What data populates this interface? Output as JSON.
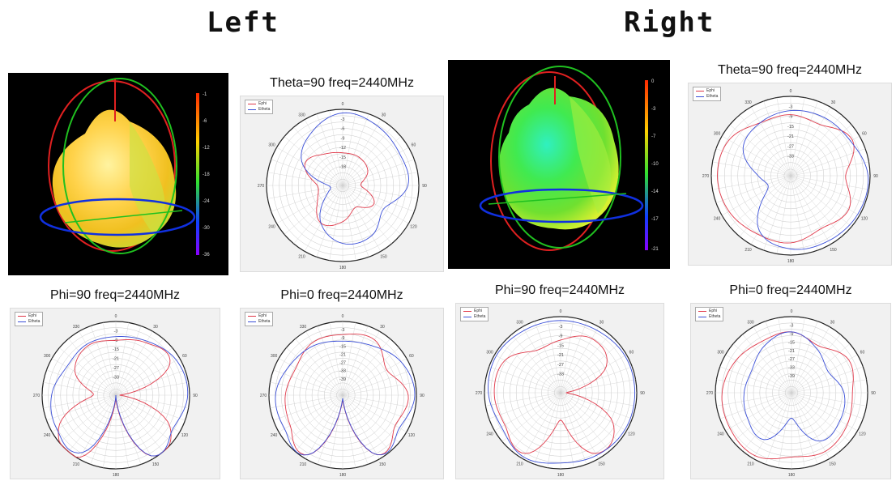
{
  "headings": {
    "left": "Left",
    "right": "Right"
  },
  "legend": {
    "ephi": "Ephi",
    "etheta": "Etheta"
  },
  "colors": {
    "ephi": "#e0394a",
    "etheta": "#3a4fd8"
  },
  "colorbar_left": {
    "ticks": [
      "-1",
      "-6",
      "-12",
      "-18",
      "-24",
      "-30",
      "-36"
    ]
  },
  "colorbar_right": {
    "ticks": [
      "0",
      "-3",
      "-7",
      "-10",
      "-14",
      "-17",
      "-21"
    ]
  },
  "chart_data": [
    {
      "type": "line",
      "id": "left-theta90",
      "title": "Theta=90 freq=2440MHz",
      "radial_labels": [
        "-3",
        "-6",
        "-9",
        "-12",
        "-15",
        "-18"
      ],
      "angle_labels": [
        "0",
        "30",
        "60",
        "90",
        "120",
        "150",
        "180",
        "210",
        "240",
        "270",
        "300",
        "330"
      ],
      "rlim": [
        -21,
        0
      ],
      "grid": true,
      "legend": "top-left",
      "angles": [
        0,
        30,
        60,
        90,
        120,
        150,
        180,
        210,
        240,
        270,
        300,
        330
      ],
      "series": [
        {
          "name": "Ephi",
          "values": [
            -12,
            -12,
            -13,
            -16,
            -11,
            -14,
            -11,
            -9,
            -13,
            -14,
            -9,
            -11
          ]
        },
        {
          "name": "Etheta",
          "values": [
            -1,
            -2,
            -3,
            -3,
            -8,
            -5,
            -5,
            -9,
            -16,
            -17,
            -8,
            -4
          ]
        }
      ]
    },
    {
      "type": "line",
      "id": "left-phi90",
      "title": "Phi=90 freq=2440MHz",
      "radial_labels": [
        "-3",
        "-9",
        "-15",
        "-21",
        "-27",
        "-33"
      ],
      "angle_labels": [
        "0",
        "30",
        "60",
        "90",
        "120",
        "150",
        "180",
        "210",
        "240",
        "270",
        "300",
        "330"
      ],
      "rlim": [
        -39,
        0
      ],
      "grid": true,
      "legend": "top-left",
      "angles": [
        0,
        30,
        60,
        90,
        120,
        150,
        180,
        210,
        240,
        270,
        300,
        330
      ],
      "series": [
        {
          "name": "Ephi",
          "values": [
            -10,
            -7,
            -6,
            -37,
            -6,
            -2,
            -37,
            -1,
            -4,
            -27,
            -14,
            -9
          ]
        },
        {
          "name": "Etheta",
          "values": [
            -8,
            -6,
            -2,
            -1,
            -4,
            -2,
            -39,
            -4,
            -3,
            -5,
            -9,
            -8
          ]
        }
      ]
    },
    {
      "type": "line",
      "id": "left-phi0",
      "title": "Phi=0 freq=2440MHz",
      "radial_labels": [
        "-3",
        "-9",
        "-15",
        "-21",
        "-27",
        "-33",
        "-39"
      ],
      "angle_labels": [
        "0",
        "30",
        "60",
        "90",
        "120",
        "150",
        "180",
        "210",
        "240",
        "270",
        "300",
        "330"
      ],
      "rlim": [
        -45,
        0
      ],
      "grid": true,
      "legend": "top-left",
      "angles": [
        0,
        30,
        60,
        90,
        120,
        150,
        180,
        210,
        240,
        270,
        300,
        330
      ],
      "series": [
        {
          "name": "Ephi",
          "values": [
            -8,
            -6,
            -14,
            -5,
            -8,
            -3,
            -42,
            -3,
            -8,
            -10,
            -12,
            -8
          ]
        },
        {
          "name": "Etheta",
          "values": [
            -12,
            -10,
            -4,
            -1,
            -5,
            -3,
            -43,
            -3,
            -4,
            -4,
            -8,
            -10
          ]
        }
      ]
    },
    {
      "type": "line",
      "id": "right-theta90",
      "title": "Theta=90 freq=2440MHz",
      "radial_labels": [
        "-3",
        "-9",
        "-15",
        "-21",
        "-27",
        "-33"
      ],
      "angle_labels": [
        "0",
        "30",
        "60",
        "90",
        "120",
        "150",
        "180",
        "210",
        "240",
        "270",
        "300",
        "330"
      ],
      "rlim": [
        -39,
        0
      ],
      "grid": true,
      "legend": "top-left",
      "angles": [
        0,
        30,
        60,
        90,
        120,
        150,
        180,
        210,
        240,
        270,
        300,
        330
      ],
      "series": [
        {
          "name": "Ephi",
          "values": [
            -9,
            -10,
            -4,
            -12,
            -6,
            -9,
            -6,
            -6,
            -4,
            -3,
            -4,
            -9
          ]
        },
        {
          "name": "Etheta",
          "values": [
            -7,
            -6,
            -5,
            -1,
            -1,
            -2,
            -3,
            -8,
            -26,
            -23,
            -12,
            -9
          ]
        }
      ]
    },
    {
      "type": "line",
      "id": "right-phi90",
      "title": "Phi=90 freq=2440MHz",
      "radial_labels": [
        "-3",
        "-9",
        "-15",
        "-21",
        "-27",
        "-33"
      ],
      "angle_labels": [
        "0",
        "30",
        "60",
        "90",
        "120",
        "150",
        "180",
        "210",
        "240",
        "270",
        "300",
        "330"
      ],
      "rlim": [
        -39,
        0
      ],
      "grid": true,
      "legend": "top-left",
      "angles": [
        0,
        30,
        60,
        90,
        120,
        150,
        180,
        210,
        240,
        270,
        300,
        330
      ],
      "series": [
        {
          "name": "Ephi",
          "values": [
            -12,
            -7,
            -12,
            -36,
            -8,
            -3,
            -25,
            -3,
            -6,
            -5,
            -6,
            -14
          ]
        },
        {
          "name": "Etheta",
          "values": [
            -2,
            -2,
            -1,
            -1,
            -1,
            -2,
            -3,
            -1,
            -4,
            -2,
            -1,
            -2
          ]
        }
      ]
    },
    {
      "type": "line",
      "id": "right-phi0",
      "title": "Phi=0 freq=2440MHz",
      "radial_labels": [
        "-3",
        "-9",
        "-15",
        "-21",
        "-27",
        "-33",
        "-39"
      ],
      "angle_labels": [
        "0",
        "30",
        "60",
        "90",
        "120",
        "150",
        "180",
        "210",
        "240",
        "270",
        "300",
        "330"
      ],
      "rlim": [
        -45,
        0
      ],
      "grid": true,
      "legend": "top-left",
      "angles": [
        0,
        30,
        60,
        90,
        120,
        150,
        180,
        210,
        240,
        270,
        300,
        330
      ],
      "series": [
        {
          "name": "Ephi",
          "values": [
            -9,
            -13,
            -6,
            -9,
            -7,
            -5,
            -7,
            -2,
            -3,
            -4,
            -7,
            -10
          ]
        },
        {
          "name": "Etheta",
          "values": [
            -9,
            -15,
            -20,
            -14,
            -12,
            -12,
            -30,
            -13,
            -15,
            -17,
            -18,
            -13
          ]
        }
      ]
    }
  ]
}
